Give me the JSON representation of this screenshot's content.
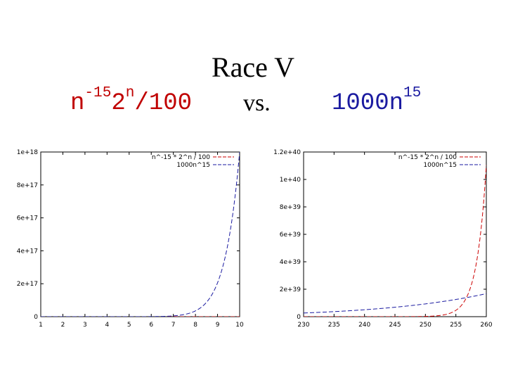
{
  "slide": {
    "title": "Race V",
    "left_expr": {
      "base1": "n",
      "exp1": "-15",
      "base2": "2",
      "exp2": "n",
      "tail": "/100"
    },
    "vs": "vs.",
    "right_expr": {
      "base": "1000n",
      "exp": "15"
    }
  },
  "colors": {
    "red": "#cc0000",
    "blue": "#1a1aa0"
  },
  "chart_data": [
    {
      "type": "line",
      "xlim": [
        1,
        10
      ],
      "ylim": [
        0,
        1e+18
      ],
      "xticks": [
        "1",
        "2",
        "3",
        "4",
        "5",
        "6",
        "7",
        "8",
        "9",
        "10"
      ],
      "yticks": [
        "0",
        "2e+17",
        "4e+17",
        "6e+17",
        "8e+17",
        "1e+18"
      ],
      "legend": "top-right",
      "series": [
        {
          "name": "n^-15 * 2^n / 100",
          "color": "#cc0000",
          "dash": "6,3",
          "func": "race_f"
        },
        {
          "name": "1000n^15",
          "color": "#1a1aa0",
          "dash": "6,3",
          "func": "race_g"
        }
      ]
    },
    {
      "type": "line",
      "xlim": [
        230,
        260
      ],
      "ylim": [
        0,
        1.2e+40
      ],
      "xticks": [
        "230",
        "235",
        "240",
        "245",
        "250",
        "255",
        "260"
      ],
      "yticks": [
        "0",
        "2e+39",
        "4e+39",
        "6e+39",
        "8e+39",
        "1e+40",
        "1.2e+40"
      ],
      "legend": "top-right",
      "series": [
        {
          "name": "n^-15 * 2^n / 100",
          "color": "#cc0000",
          "dash": "6,3",
          "func": "race_f"
        },
        {
          "name": "1000n^15",
          "color": "#1a1aa0",
          "dash": "6,3",
          "func": "race_g"
        }
      ]
    }
  ]
}
